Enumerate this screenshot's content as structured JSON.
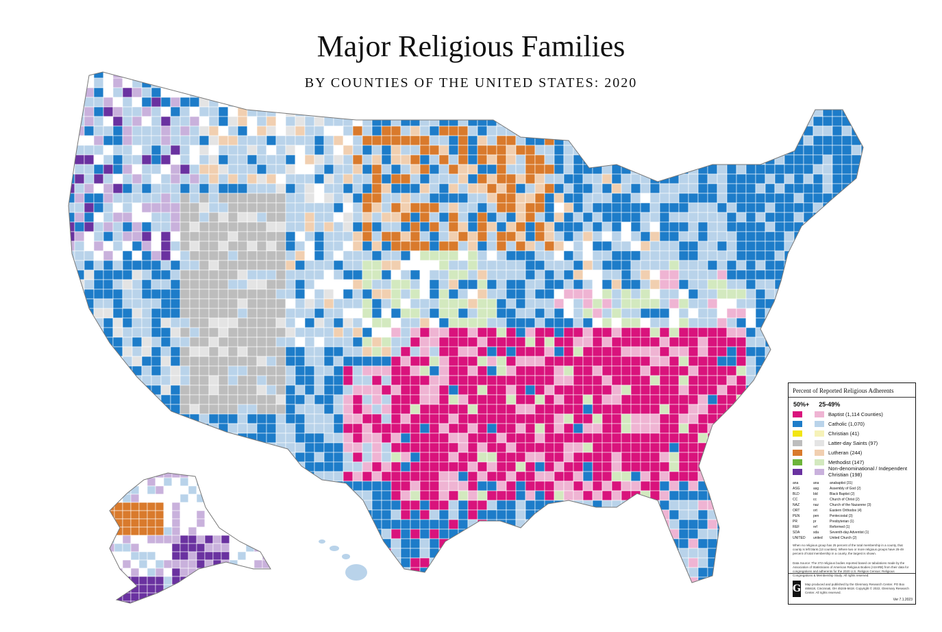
{
  "title": "Major Religious Families",
  "subtitle": "BY COUNTIES OF THE UNITED STATES: 2020",
  "colors": {
    "baptist": "#d9137c",
    "baptist_light": "#efb4d3",
    "catholic": "#1d7cc9",
    "catholic_light": "#b9d3ea",
    "christian": "#f2e512",
    "christian_light": "#f6f2b8",
    "lds": "#bdbdbd",
    "lds_light": "#e4e4e4",
    "lutheran": "#d97a2c",
    "lutheran_light": "#f1cfb0",
    "methodist": "#6db43a",
    "methodist_light": "#d3e9bf",
    "nondenom": "#6a32a0",
    "nondenom_light": "#c9b1dc",
    "none": "#ffffff",
    "border": "#ffffff"
  },
  "legend": {
    "title": "Percent of Reported Religious Adherents",
    "col_majority": "50%+",
    "col_plurality": "25-49%",
    "items": [
      {
        "key": "baptist",
        "label": "Baptist (1,114 Counties)"
      },
      {
        "key": "catholic",
        "label": "Catholic (1,070)"
      },
      {
        "key": "christian",
        "label": "Christian (41)"
      },
      {
        "key": "lds",
        "label": "Latter-day Saints (97)"
      },
      {
        "key": "lutheran",
        "label": "Lutheran (244)"
      },
      {
        "key": "methodist",
        "label": "Methodist (147)"
      },
      {
        "key": "nondenom",
        "label": "Non-denominational / Independent Christian (198)"
      }
    ],
    "minor": [
      [
        "ana",
        "ana",
        "anabaptist (31)"
      ],
      [
        "ASG",
        "asg",
        "Assembly of God (2)"
      ],
      [
        "BLD",
        "bld",
        "Black Baptist (2)"
      ],
      [
        "CC",
        "cc",
        "Church of Christ (2)"
      ],
      [
        "NAZ",
        "naz",
        "Church of the Nazarene (3)"
      ],
      [
        "ORT",
        "ort",
        "Eastern Orthodox (4)"
      ],
      [
        "PEN",
        "pen",
        "Pentecostal (3)"
      ],
      [
        "PR",
        "pr",
        "Presbyterian (1)"
      ],
      [
        "REF",
        "ref",
        "Reformed (1)"
      ],
      [
        "SDA",
        "sda",
        "Seventh-day Adventist (1)"
      ],
      [
        "UNITED",
        "united",
        "United Church (2)"
      ]
    ],
    "note": "When no religious group has 25 percent of the total membership in a county, that county is left blank (13 counties). Where two or more religious groups have 25-49 percent of total membership in a county, the largest is shown.",
    "data_source": "Data Source: The 372 religious bodies reported based on tabulations made by the Association of Statisticians of American Religious Bodies (ASARB) from their data for congregations and adherents for the 2020 U.S. Religion Census: Religious Congregations & Membership Study. All rights reserved.",
    "credit": "Map produced and published by the Glenmary Research Center. PO Box 465618, Cincinnati, OH 45246-5618. Copyright © 2022, Glenmary Research Center. All rights reserved.",
    "version": "Ver 7.1.2023"
  }
}
